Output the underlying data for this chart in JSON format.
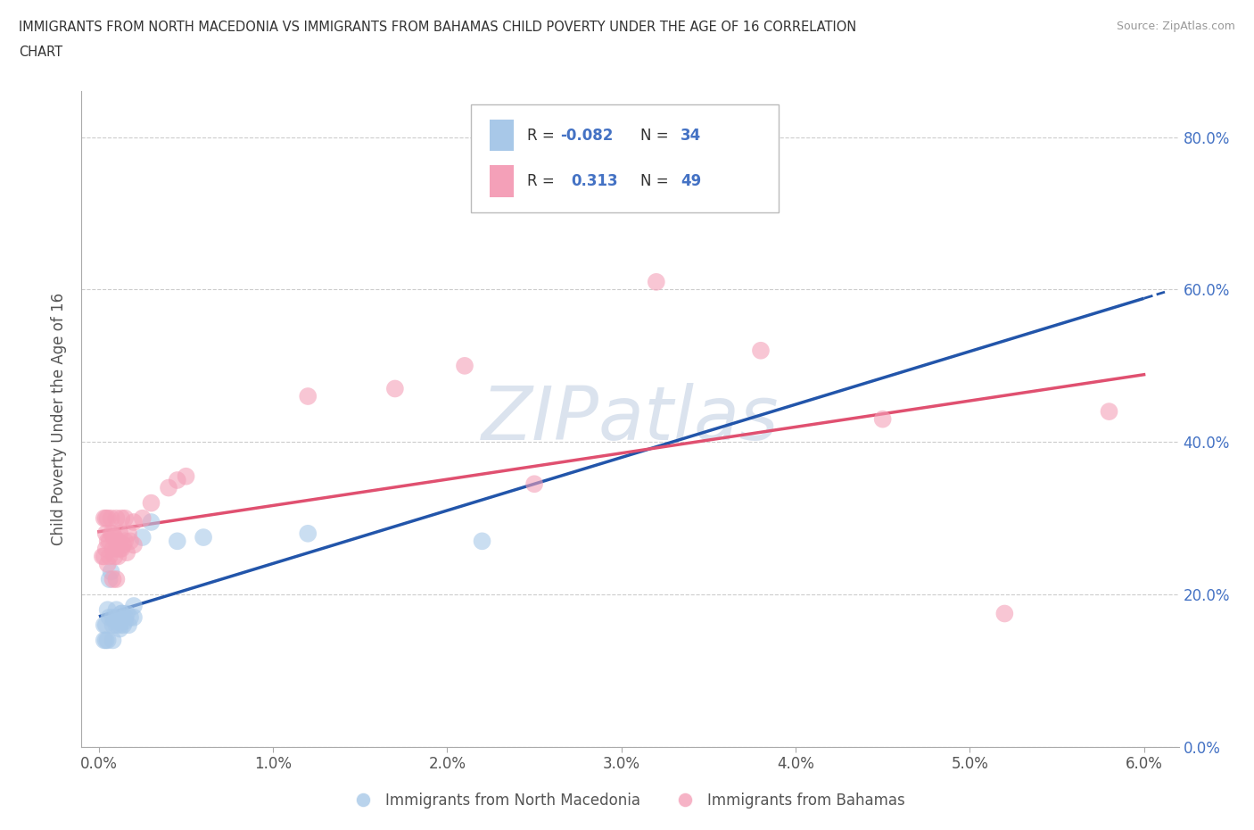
{
  "title_line1": "IMMIGRANTS FROM NORTH MACEDONIA VS IMMIGRANTS FROM BAHAMAS CHILD POVERTY UNDER THE AGE OF 16 CORRELATION",
  "title_line2": "CHART",
  "source": "Source: ZipAtlas.com",
  "ylabel": "Child Poverty Under the Age of 16",
  "xtick_labels": [
    "0.0%",
    "1.0%",
    "2.0%",
    "3.0%",
    "4.0%",
    "5.0%",
    "6.0%"
  ],
  "ytick_labels": [
    "0.0%",
    "20.0%",
    "40.0%",
    "60.0%",
    "80.0%"
  ],
  "xlim": [
    0.0,
    0.06
  ],
  "ylim": [
    0.0,
    0.85
  ],
  "legend_series1": "Immigrants from North Macedonia",
  "legend_series2": "Immigrants from Bahamas",
  "r1": -0.082,
  "n1": 34,
  "r2": 0.313,
  "n2": 49,
  "color_blue": "#a8c8e8",
  "color_pink": "#f4a0b8",
  "color_blue_line": "#2255aa",
  "color_pink_line": "#e05070",
  "color_ytick": "#4472c4",
  "watermark_color": "#ccd8e8",
  "nm_x": [
    0.0003,
    0.0003,
    0.0004,
    0.0004,
    0.0005,
    0.0005,
    0.0006,
    0.0006,
    0.0007,
    0.0008,
    0.0008,
    0.0008,
    0.001,
    0.001,
    0.001,
    0.001,
    0.0012,
    0.0012,
    0.0013,
    0.0013,
    0.0014,
    0.0015,
    0.0015,
    0.0016,
    0.0017,
    0.0018,
    0.002,
    0.002,
    0.0025,
    0.003,
    0.0045,
    0.006,
    0.012,
    0.022
  ],
  "nm_y": [
    0.16,
    0.14,
    0.16,
    0.14,
    0.18,
    0.14,
    0.22,
    0.17,
    0.23,
    0.17,
    0.14,
    0.16,
    0.165,
    0.16,
    0.17,
    0.18,
    0.155,
    0.16,
    0.175,
    0.175,
    0.16,
    0.17,
    0.165,
    0.175,
    0.16,
    0.17,
    0.17,
    0.185,
    0.275,
    0.295,
    0.27,
    0.275,
    0.28,
    0.27
  ],
  "bah_x": [
    0.0002,
    0.0003,
    0.0003,
    0.0004,
    0.0004,
    0.0004,
    0.0005,
    0.0005,
    0.0005,
    0.0006,
    0.0006,
    0.0007,
    0.0007,
    0.0008,
    0.0008,
    0.0008,
    0.0009,
    0.0009,
    0.001,
    0.001,
    0.001,
    0.0011,
    0.0011,
    0.0012,
    0.0012,
    0.0013,
    0.0013,
    0.0014,
    0.0015,
    0.0015,
    0.0016,
    0.0017,
    0.0018,
    0.002,
    0.002,
    0.0025,
    0.003,
    0.004,
    0.0045,
    0.005,
    0.012,
    0.017,
    0.021,
    0.025,
    0.032,
    0.038,
    0.045,
    0.052,
    0.058
  ],
  "bah_y": [
    0.25,
    0.3,
    0.25,
    0.28,
    0.3,
    0.26,
    0.24,
    0.27,
    0.3,
    0.25,
    0.27,
    0.28,
    0.3,
    0.26,
    0.22,
    0.28,
    0.25,
    0.275,
    0.26,
    0.22,
    0.3,
    0.25,
    0.27,
    0.28,
    0.26,
    0.3,
    0.26,
    0.265,
    0.27,
    0.3,
    0.255,
    0.28,
    0.27,
    0.295,
    0.265,
    0.3,
    0.32,
    0.34,
    0.35,
    0.355,
    0.46,
    0.47,
    0.5,
    0.345,
    0.61,
    0.52,
    0.43,
    0.175,
    0.44
  ]
}
